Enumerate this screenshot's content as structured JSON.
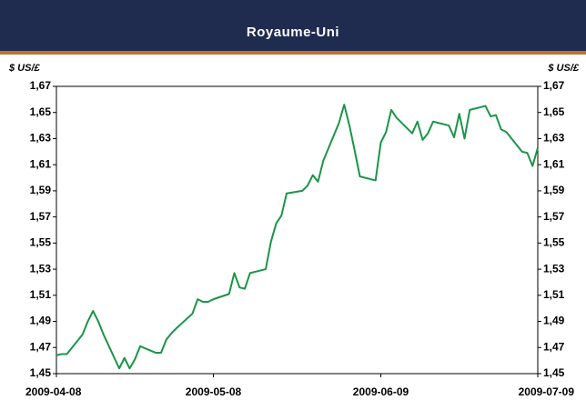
{
  "chart_data": {
    "type": "line",
    "title": "Royaume-Uni",
    "y_label_left": "$ US/£",
    "y_label_right": "$ US/£",
    "x": [
      "2009-04-08",
      "2009-04-09",
      "2009-04-10",
      "2009-04-13",
      "2009-04-14",
      "2009-04-15",
      "2009-04-16",
      "2009-04-17",
      "2009-04-20",
      "2009-04-21",
      "2009-04-22",
      "2009-04-23",
      "2009-04-24",
      "2009-04-27",
      "2009-04-28",
      "2009-04-29",
      "2009-04-30",
      "2009-05-01",
      "2009-05-04",
      "2009-05-05",
      "2009-05-06",
      "2009-05-07",
      "2009-05-08",
      "2009-05-11",
      "2009-05-12",
      "2009-05-13",
      "2009-05-14",
      "2009-05-15",
      "2009-05-18",
      "2009-05-19",
      "2009-05-20",
      "2009-05-21",
      "2009-05-22",
      "2009-05-25",
      "2009-05-26",
      "2009-05-27",
      "2009-05-28",
      "2009-05-29",
      "2009-06-01",
      "2009-06-02",
      "2009-06-03",
      "2009-06-04",
      "2009-06-05",
      "2009-06-08",
      "2009-06-09",
      "2009-06-10",
      "2009-06-11",
      "2009-06-12",
      "2009-06-15",
      "2009-06-16",
      "2009-06-17",
      "2009-06-18",
      "2009-06-19",
      "2009-06-22",
      "2009-06-23",
      "2009-06-24",
      "2009-06-25",
      "2009-06-26",
      "2009-06-29",
      "2009-06-30",
      "2009-07-01",
      "2009-07-02",
      "2009-07-03",
      "2009-07-06",
      "2009-07-07",
      "2009-07-08",
      "2009-07-09"
    ],
    "series": [
      {
        "name": "Royaume-Uni",
        "color": "#1b9548",
        "values": [
          1.464,
          1.465,
          1.465,
          1.48,
          1.49,
          1.498,
          1.49,
          1.48,
          1.454,
          1.462,
          1.454,
          1.461,
          1.471,
          1.466,
          1.466,
          1.476,
          1.481,
          1.485,
          1.496,
          1.507,
          1.505,
          1.505,
          1.507,
          1.511,
          1.527,
          1.516,
          1.515,
          1.527,
          1.53,
          1.551,
          1.565,
          1.571,
          1.588,
          1.59,
          1.594,
          1.602,
          1.597,
          1.613,
          1.642,
          1.656,
          1.64,
          1.621,
          1.601,
          1.598,
          1.627,
          1.635,
          1.652,
          1.646,
          1.634,
          1.643,
          1.629,
          1.634,
          1.643,
          1.64,
          1.631,
          1.649,
          1.63,
          1.652,
          1.655,
          1.647,
          1.648,
          1.637,
          1.635,
          1.62,
          1.619,
          1.609,
          1.623
        ]
      }
    ],
    "xlim": [
      "2009-04-08",
      "2009-07-09"
    ],
    "xticks": [
      "2009-04-08",
      "2009-05-08",
      "2009-06-09",
      "2009-07-09"
    ],
    "ylim": [
      1.45,
      1.67
    ],
    "yticks": [
      {
        "value": 1.45,
        "label": "1,45"
      },
      {
        "value": 1.47,
        "label": "1,47"
      },
      {
        "value": 1.49,
        "label": "1,49"
      },
      {
        "value": 1.51,
        "label": "1,51"
      },
      {
        "value": 1.53,
        "label": "1,53"
      },
      {
        "value": 1.55,
        "label": "1,55"
      },
      {
        "value": 1.57,
        "label": "1,57"
      },
      {
        "value": 1.59,
        "label": "1,59"
      },
      {
        "value": 1.61,
        "label": "1,61"
      },
      {
        "value": 1.63,
        "label": "1,63"
      },
      {
        "value": 1.65,
        "label": "1,65"
      },
      {
        "value": 1.67,
        "label": "1,67"
      }
    ],
    "grid": false
  }
}
